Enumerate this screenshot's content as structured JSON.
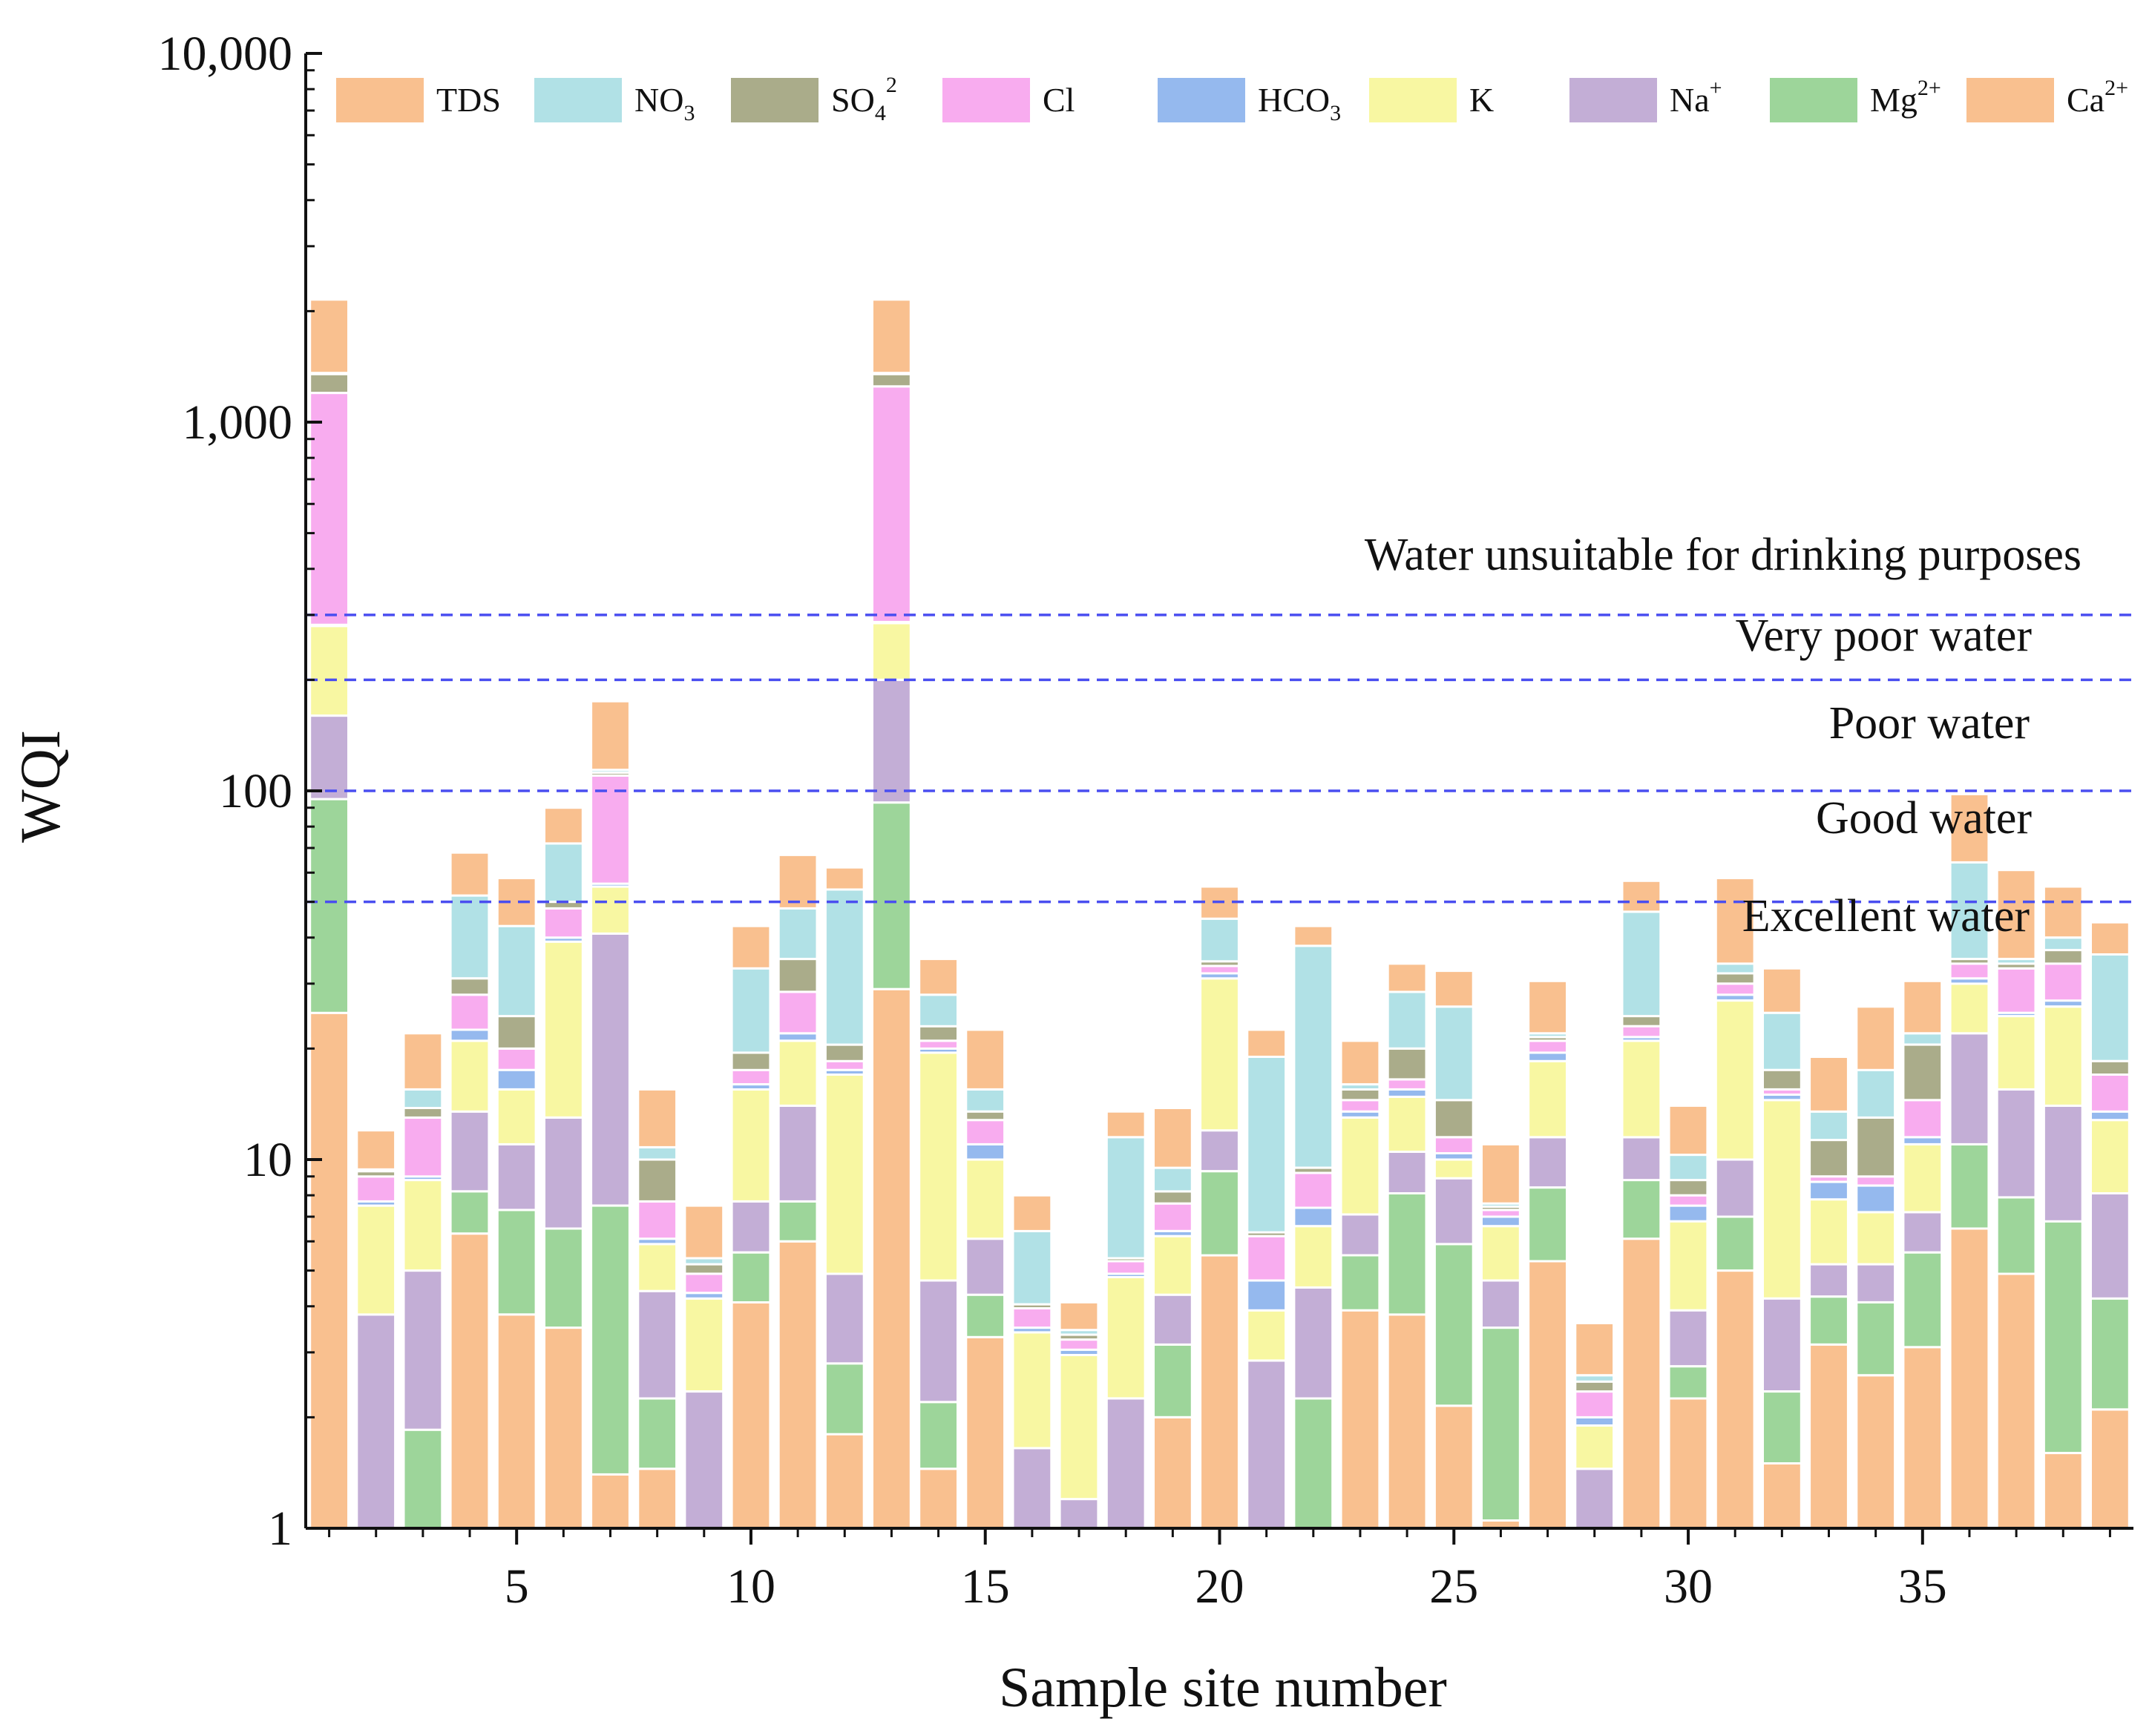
{
  "chart_data": {
    "type": "bar",
    "stacked": true,
    "yscale": "log",
    "title": "",
    "xlabel": "Sample site number",
    "ylabel": "WQI",
    "ylim": [
      1,
      10000
    ],
    "xlim": [
      0.5,
      39.5
    ],
    "x_ticks": [
      5,
      10,
      15,
      20,
      25,
      30,
      35
    ],
    "y_ticks": [
      {
        "value": 1,
        "label": "1"
      },
      {
        "value": 10,
        "label": "10"
      },
      {
        "value": 100,
        "label": "100"
      },
      {
        "value": 1000,
        "label": "1,000"
      },
      {
        "value": 10000,
        "label": "10,000"
      }
    ],
    "legend": {
      "placement": "top",
      "entries": [
        {
          "key": "TDS",
          "label": "TDS",
          "sub": "",
          "sup": ""
        },
        {
          "key": "NO3",
          "label": "NO",
          "sub": "3",
          "sup": ""
        },
        {
          "key": "SO4",
          "label": "SO",
          "sub": "4",
          "sup": "2"
        },
        {
          "key": "Cl",
          "label": "Cl",
          "sub": "",
          "sup": ""
        },
        {
          "key": "HCO3",
          "label": "HCO",
          "sub": "3",
          "sup": ""
        },
        {
          "key": "K",
          "label": "K",
          "sub": "",
          "sup": ""
        },
        {
          "key": "Na",
          "label": "Na",
          "sub": "",
          "sup": "+"
        },
        {
          "key": "Mg",
          "label": "Mg",
          "sub": "",
          "sup": "2+"
        },
        {
          "key": "Ca",
          "label": "Ca",
          "sub": "",
          "sup": "2+"
        }
      ]
    },
    "colors": {
      "Ca": "#f9c08f",
      "Mg": "#9dd59a",
      "Na": "#c3aed6",
      "K": "#f8f7a2",
      "HCO3": "#95b9ee",
      "Cl": "#f8acef",
      "SO4": "#aaac8a",
      "NO3": "#b1e1e6",
      "TDS": "#f9c08f"
    },
    "stack_order": [
      "Ca",
      "Mg",
      "Na",
      "K",
      "HCO3",
      "Cl",
      "SO4",
      "NO3",
      "TDS"
    ],
    "stack_note": "Values are cumulative WQI at the top of each segment, bottom-to-top in stack_order; null = segment not visible.",
    "thresholds": [
      {
        "value": 50,
        "label": "Excellent water"
      },
      {
        "value": 100,
        "label": "Good water"
      },
      {
        "value": 200,
        "label": "Poor water"
      },
      {
        "value": 300,
        "label": "Very poor water"
      },
      {
        "value": 300,
        "label": "Water unsuitable for drinking purposes"
      }
    ],
    "sites": [
      {
        "x": 1,
        "tops": {
          "Ca": 25,
          "Mg": 95,
          "Na": 160,
          "K": 280,
          "HCO3": 282,
          "Cl": 1200,
          "SO4": 1350,
          "NO3": 1360,
          "TDS": 2150
        }
      },
      {
        "x": 2,
        "tops": {
          "Ca": null,
          "Mg": null,
          "Na": 3.8,
          "K": 7.5,
          "HCO3": 7.7,
          "Cl": 9.0,
          "SO4": 9.3,
          "NO3": 9.4,
          "TDS": 12
        }
      },
      {
        "x": 3,
        "tops": {
          "Ca": null,
          "Mg": 1.85,
          "Na": 5.0,
          "K": 8.8,
          "HCO3": 9.0,
          "Cl": 13,
          "SO4": 13.8,
          "NO3": 15.5,
          "TDS": 22
        }
      },
      {
        "x": 4,
        "tops": {
          "Ca": 6.3,
          "Mg": 8.2,
          "Na": 13.5,
          "K": 21,
          "HCO3": 22.5,
          "Cl": 28,
          "SO4": 31,
          "NO3": 52,
          "TDS": 68
        }
      },
      {
        "x": 5,
        "tops": {
          "Ca": 3.8,
          "Mg": 7.3,
          "Na": 11,
          "K": 15.5,
          "HCO3": 17.5,
          "Cl": 20,
          "SO4": 24.5,
          "NO3": 43,
          "TDS": 58
        }
      },
      {
        "x": 6,
        "tops": {
          "Ca": 3.5,
          "Mg": 6.5,
          "Na": 13,
          "K": 39,
          "HCO3": 40,
          "Cl": 48,
          "SO4": 50,
          "NO3": 72,
          "TDS": 90
        }
      },
      {
        "x": 7,
        "tops": {
          "Ca": 1.4,
          "Mg": 7.5,
          "Na": 41,
          "K": 55,
          "HCO3": 56,
          "Cl": 110,
          "SO4": 112,
          "NO3": 114,
          "TDS": 175
        }
      },
      {
        "x": 8,
        "tops": {
          "Ca": 1.45,
          "Mg": 2.25,
          "Na": 4.4,
          "K": 5.9,
          "HCO3": 6.1,
          "Cl": 7.7,
          "SO4": 10,
          "NO3": 10.8,
          "TDS": 15.5
        }
      },
      {
        "x": 9,
        "tops": {
          "Ca": null,
          "Mg": null,
          "Na": 2.35,
          "K": 4.2,
          "HCO3": 4.35,
          "Cl": 4.9,
          "SO4": 5.2,
          "NO3": 5.4,
          "TDS": 7.5
        }
      },
      {
        "x": 10,
        "tops": {
          "Ca": 4.1,
          "Mg": 5.6,
          "Na": 7.7,
          "K": 15.5,
          "HCO3": 16,
          "Cl": 17.5,
          "SO4": 19.5,
          "NO3": 33,
          "TDS": 43
        }
      },
      {
        "x": 11,
        "tops": {
          "Ca": 6.0,
          "Mg": 7.7,
          "Na": 14,
          "K": 21,
          "HCO3": 22,
          "Cl": 28.5,
          "SO4": 35,
          "NO3": 48,
          "TDS": 67
        }
      },
      {
        "x": 12,
        "tops": {
          "Ca": 1.8,
          "Mg": 2.8,
          "Na": 4.9,
          "K": 17,
          "HCO3": 17.5,
          "Cl": 18.5,
          "SO4": 20.5,
          "NO3": 54,
          "TDS": 62
        }
      },
      {
        "x": 13,
        "tops": {
          "Ca": 29,
          "Mg": 93,
          "Na": 200,
          "K": 285,
          "HCO3": 287,
          "Cl": 1250,
          "SO4": 1350,
          "NO3": 1360,
          "TDS": 2150
        }
      },
      {
        "x": 14,
        "tops": {
          "Ca": 1.45,
          "Mg": 2.2,
          "Na": 4.7,
          "K": 19.5,
          "HCO3": 20,
          "Cl": 21,
          "SO4": 23,
          "NO3": 28,
          "TDS": 35
        }
      },
      {
        "x": 15,
        "tops": {
          "Ca": 3.3,
          "Mg": 4.3,
          "Na": 6.1,
          "K": 10,
          "HCO3": 11,
          "Cl": 12.8,
          "SO4": 13.5,
          "NO3": 15.5,
          "TDS": 22.5
        }
      },
      {
        "x": 16,
        "tops": {
          "Ca": null,
          "Mg": null,
          "Na": 1.65,
          "K": 3.4,
          "HCO3": 3.5,
          "Cl": 3.95,
          "SO4": 4.05,
          "NO3": 6.4,
          "TDS": 8.0
        }
      },
      {
        "x": 17,
        "tops": {
          "Ca": null,
          "Mg": null,
          "Na": 1.2,
          "K": 2.95,
          "HCO3": 3.05,
          "Cl": 3.25,
          "SO4": 3.35,
          "NO3": 3.45,
          "TDS": 4.1
        }
      },
      {
        "x": 18,
        "tops": {
          "Ca": null,
          "Mg": null,
          "Na": 2.25,
          "K": 4.8,
          "HCO3": 4.9,
          "Cl": 5.3,
          "SO4": 5.4,
          "NO3": 11.5,
          "TDS": 13.5
        }
      },
      {
        "x": 19,
        "tops": {
          "Ca": 2.0,
          "Mg": 3.15,
          "Na": 4.3,
          "K": 6.2,
          "HCO3": 6.4,
          "Cl": 7.6,
          "SO4": 8.2,
          "NO3": 9.5,
          "TDS": 13.8
        }
      },
      {
        "x": 20,
        "tops": {
          "Ca": 5.5,
          "Mg": 9.3,
          "Na": 12,
          "K": 31,
          "HCO3": 32,
          "Cl": 33.5,
          "SO4": 34.5,
          "NO3": 45,
          "TDS": 55
        }
      },
      {
        "x": 21,
        "tops": {
          "Ca": null,
          "Mg": null,
          "Na": 2.85,
          "K": 3.9,
          "HCO3": 4.7,
          "Cl": 6.2,
          "SO4": 6.35,
          "NO3": 19,
          "TDS": 22.5
        }
      },
      {
        "x": 22,
        "tops": {
          "Ca": null,
          "Mg": 2.25,
          "Na": 4.5,
          "K": 6.6,
          "HCO3": 7.4,
          "Cl": 9.2,
          "SO4": 9.5,
          "NO3": 38,
          "TDS": 43
        }
      },
      {
        "x": 23,
        "tops": {
          "Ca": 3.9,
          "Mg": 5.5,
          "Na": 7.1,
          "K": 13,
          "HCO3": 13.5,
          "Cl": 14.5,
          "SO4": 15.5,
          "NO3": 16,
          "TDS": 21
        }
      },
      {
        "x": 24,
        "tops": {
          "Ca": 3.8,
          "Mg": 8.1,
          "Na": 10.5,
          "K": 14.8,
          "HCO3": 15.5,
          "Cl": 16.5,
          "SO4": 20,
          "NO3": 28.5,
          "TDS": 34
        }
      },
      {
        "x": 25,
        "tops": {
          "Ca": 2.15,
          "Mg": 5.9,
          "Na": 8.9,
          "K": 10,
          "HCO3": 10.4,
          "Cl": 11.5,
          "SO4": 14.5,
          "NO3": 26,
          "TDS": 32.5
        }
      },
      {
        "x": 26,
        "tops": {
          "Ca": 1.05,
          "Mg": 3.5,
          "Na": 4.7,
          "K": 6.6,
          "HCO3": 7.0,
          "Cl": 7.3,
          "SO4": 7.45,
          "NO3": 7.6,
          "TDS": 11
        }
      },
      {
        "x": 27,
        "tops": {
          "Ca": 5.3,
          "Mg": 8.4,
          "Na": 11.5,
          "K": 18.5,
          "HCO3": 19.5,
          "Cl": 21,
          "SO4": 21.5,
          "NO3": 22,
          "TDS": 30.5
        }
      },
      {
        "x": 28,
        "tops": {
          "Ca": null,
          "Mg": null,
          "Na": 1.45,
          "K": 1.9,
          "HCO3": 2.0,
          "Cl": 2.35,
          "SO4": 2.5,
          "NO3": 2.6,
          "TDS": 3.6
        }
      },
      {
        "x": 29,
        "tops": {
          "Ca": 6.1,
          "Mg": 8.8,
          "Na": 11.5,
          "K": 21,
          "HCO3": 21.5,
          "Cl": 23,
          "SO4": 24.5,
          "NO3": 47,
          "TDS": 57
        }
      },
      {
        "x": 30,
        "tops": {
          "Ca": 2.25,
          "Mg": 2.75,
          "Na": 3.9,
          "K": 6.8,
          "HCO3": 7.5,
          "Cl": 8.0,
          "SO4": 8.8,
          "NO3": 10.3,
          "TDS": 14
        }
      },
      {
        "x": 31,
        "tops": {
          "Ca": 5.0,
          "Mg": 7.0,
          "Na": 10,
          "K": 27,
          "HCO3": 28,
          "Cl": 30,
          "SO4": 32,
          "NO3": 34,
          "TDS": 58
        }
      },
      {
        "x": 32,
        "tops": {
          "Ca": 1.5,
          "Mg": 2.35,
          "Na": 4.2,
          "K": 14.5,
          "HCO3": 15,
          "Cl": 15.5,
          "SO4": 17.5,
          "NO3": 25,
          "TDS": 33
        }
      },
      {
        "x": 33,
        "tops": {
          "Ca": 3.15,
          "Mg": 4.25,
          "Na": 5.2,
          "K": 7.8,
          "HCO3": 8.7,
          "Cl": 9.0,
          "SO4": 11.3,
          "NO3": 13.5,
          "TDS": 19
        }
      },
      {
        "x": 34,
        "tops": {
          "Ca": 2.6,
          "Mg": 4.1,
          "Na": 5.2,
          "K": 7.2,
          "HCO3": 8.5,
          "Cl": 9.0,
          "SO4": 13,
          "NO3": 17.5,
          "TDS": 26
        }
      },
      {
        "x": 35,
        "tops": {
          "Ca": 3.1,
          "Mg": 5.6,
          "Na": 7.2,
          "K": 11,
          "HCO3": 11.5,
          "Cl": 14.5,
          "SO4": 20.5,
          "NO3": 22,
          "TDS": 30.5
        }
      },
      {
        "x": 36,
        "tops": {
          "Ca": 6.5,
          "Mg": 11,
          "Na": 22,
          "K": 30,
          "HCO3": 31,
          "Cl": 34,
          "SO4": 35,
          "NO3": 64,
          "TDS": 98
        }
      },
      {
        "x": 37,
        "tops": {
          "Ca": 4.9,
          "Mg": 7.9,
          "Na": 15.5,
          "K": 24.5,
          "HCO3": 25,
          "Cl": 33,
          "SO4": 34,
          "NO3": 35,
          "TDS": 61
        }
      },
      {
        "x": 38,
        "tops": {
          "Ca": 1.6,
          "Mg": 6.8,
          "Na": 14,
          "K": 26,
          "HCO3": 27,
          "Cl": 34,
          "SO4": 37,
          "NO3": 40,
          "TDS": 55
        }
      },
      {
        "x": 39,
        "tops": {
          "Ca": 2.1,
          "Mg": 4.2,
          "Na": 8.1,
          "K": 12.8,
          "HCO3": 13.5,
          "Cl": 17,
          "SO4": 18.5,
          "NO3": 36,
          "TDS": 44
        }
      }
    ]
  }
}
